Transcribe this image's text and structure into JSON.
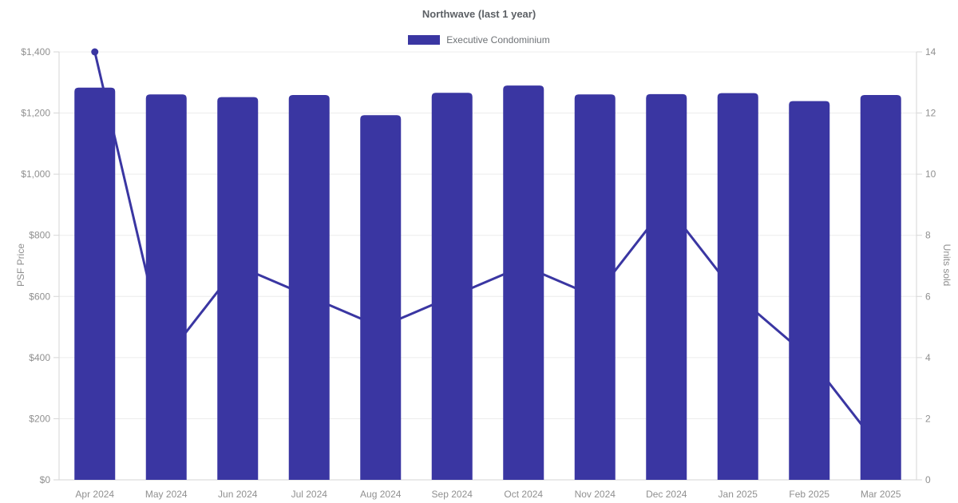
{
  "chart_data": {
    "type": "bar",
    "title": "Northwave (last 1 year)",
    "categories": [
      "Apr 2024",
      "May 2024",
      "Jun 2024",
      "Jul 2024",
      "Aug 2024",
      "Sep 2024",
      "Oct 2024",
      "Nov 2024",
      "Dec 2024",
      "Jan 2025",
      "Feb 2025",
      "Mar 2025"
    ],
    "series": [
      {
        "name": "Executive Condominium",
        "type": "bar",
        "axis": "left",
        "values": [
          1283,
          1261,
          1252,
          1259,
          1193,
          1266,
          1290,
          1261,
          1262,
          1265,
          1239,
          1259
        ]
      },
      {
        "name": "Units sold",
        "type": "line",
        "axis": "right",
        "values": [
          14,
          4,
          7,
          6,
          5,
          6,
          7,
          6,
          9,
          6,
          4,
          1
        ]
      }
    ],
    "ylabel_left": "PSF Price",
    "ylabel_right": "Units sold",
    "ylim_left": [
      0,
      1400
    ],
    "ylim_right": [
      0,
      14
    ],
    "yticks_left": [
      "$0",
      "$200",
      "$400",
      "$600",
      "$800",
      "$1,000",
      "$1,200",
      "$1,400"
    ],
    "yticks_right": [
      "0",
      "2",
      "4",
      "6",
      "8",
      "10",
      "12",
      "14"
    ],
    "legend": {
      "position": "top",
      "entries": [
        "Executive Condominium"
      ]
    },
    "grid": "horizontal-only"
  },
  "colors": {
    "accent": "#3a36a2",
    "grid": "#ececec",
    "axis": "#d6d6d6",
    "tick_text": "#909090",
    "title_text": "#5c6065",
    "legend_text": "#6e7276",
    "background": "#ffffff"
  }
}
